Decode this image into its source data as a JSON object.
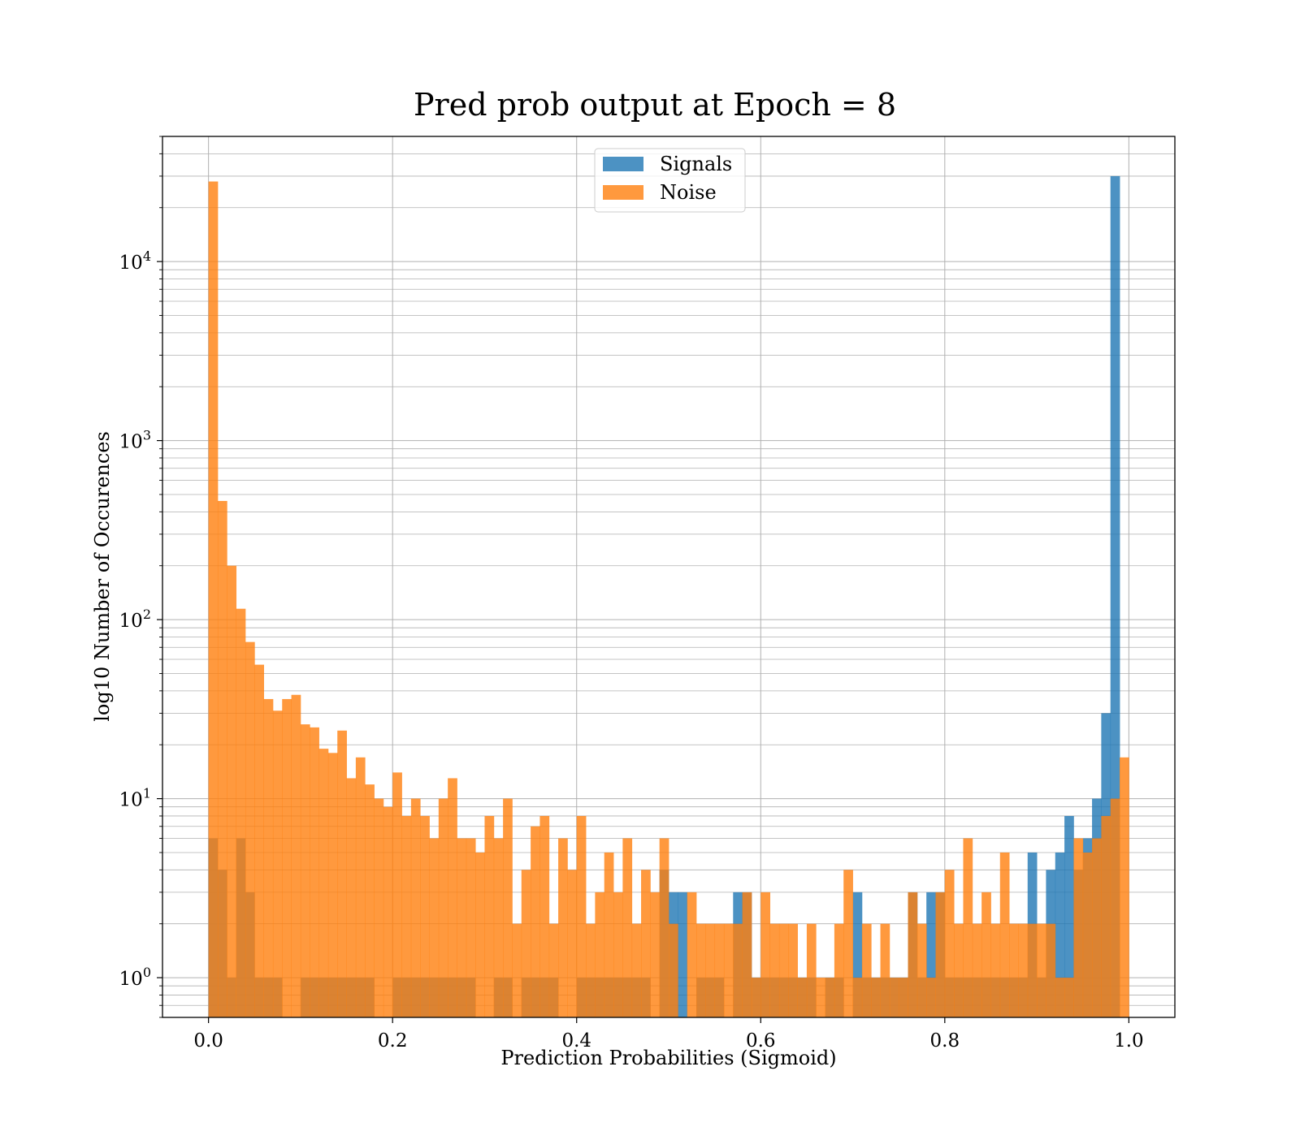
{
  "chart_data": {
    "type": "bar",
    "title": "Pred prob output at Epoch = 8",
    "xlabel": "Prediction Probabilities (Sigmoid)",
    "ylabel": "log10 Number of Occurences",
    "yscale": "log",
    "xlim": [
      -0.05,
      1.05
    ],
    "ylim": [
      0.6,
      50000
    ],
    "grid": true,
    "legend_position": "upper-center",
    "bin_width": 0.01,
    "x_ticks": [
      {
        "value": 0.0,
        "label": "0.0"
      },
      {
        "value": 0.2,
        "label": "0.2"
      },
      {
        "value": 0.4,
        "label": "0.4"
      },
      {
        "value": 0.6,
        "label": "0.6"
      },
      {
        "value": 0.8,
        "label": "0.8"
      },
      {
        "value": 1.0,
        "label": "1.0"
      }
    ],
    "y_ticks": [
      {
        "value": 1,
        "base": "10",
        "exp": "0"
      },
      {
        "value": 10,
        "base": "10",
        "exp": "1"
      },
      {
        "value": 100,
        "base": "10",
        "exp": "2"
      },
      {
        "value": 1000,
        "base": "10",
        "exp": "3"
      },
      {
        "value": 10000,
        "base": "10",
        "exp": "4"
      }
    ],
    "series": [
      {
        "name": "Signals",
        "color": "#1f77b4",
        "opacity": 0.8,
        "values": [
          6,
          4,
          1,
          6,
          3,
          1,
          1,
          1,
          0,
          0,
          1,
          1,
          1,
          1,
          1,
          1,
          1,
          1,
          0,
          0,
          1,
          1,
          1,
          1,
          1,
          1,
          1,
          1,
          1,
          0,
          0,
          1,
          1,
          0,
          1,
          1,
          1,
          1,
          0,
          0,
          1,
          1,
          1,
          1,
          1,
          1,
          1,
          1,
          0,
          4,
          3,
          3,
          0,
          1,
          1,
          1,
          0,
          3,
          3,
          1,
          1,
          1,
          1,
          1,
          1,
          1,
          0,
          1,
          1,
          0,
          3,
          1,
          1,
          1,
          1,
          1,
          3,
          1,
          3,
          3,
          1,
          1,
          1,
          1,
          1,
          1,
          1,
          1,
          1,
          5,
          1,
          4,
          5,
          8,
          4,
          6,
          10,
          30,
          30000,
          0
        ]
      },
      {
        "name": "Noise",
        "color": "#ff7f0e",
        "opacity": 0.8,
        "values": [
          28000,
          460,
          200,
          115,
          75,
          56,
          36,
          31,
          36,
          38,
          26,
          25,
          19,
          18,
          24,
          13,
          17,
          12,
          10,
          9,
          14,
          8,
          10,
          8,
          6,
          10,
          13,
          6,
          6,
          5,
          8,
          6,
          10,
          2,
          4,
          7,
          8,
          2,
          6,
          4,
          8,
          2,
          3,
          5,
          3,
          6,
          2,
          4,
          3,
          6,
          2,
          0,
          3,
          2,
          2,
          2,
          2,
          2,
          3,
          1,
          3,
          2,
          2,
          2,
          1,
          2,
          1,
          1,
          2,
          4,
          1,
          2,
          1,
          2,
          1,
          1,
          3,
          2,
          1,
          3,
          4,
          2,
          6,
          2,
          3,
          2,
          5,
          2,
          2,
          2,
          2,
          2,
          1,
          1,
          6,
          5,
          6,
          8,
          10,
          17
        ]
      }
    ]
  }
}
